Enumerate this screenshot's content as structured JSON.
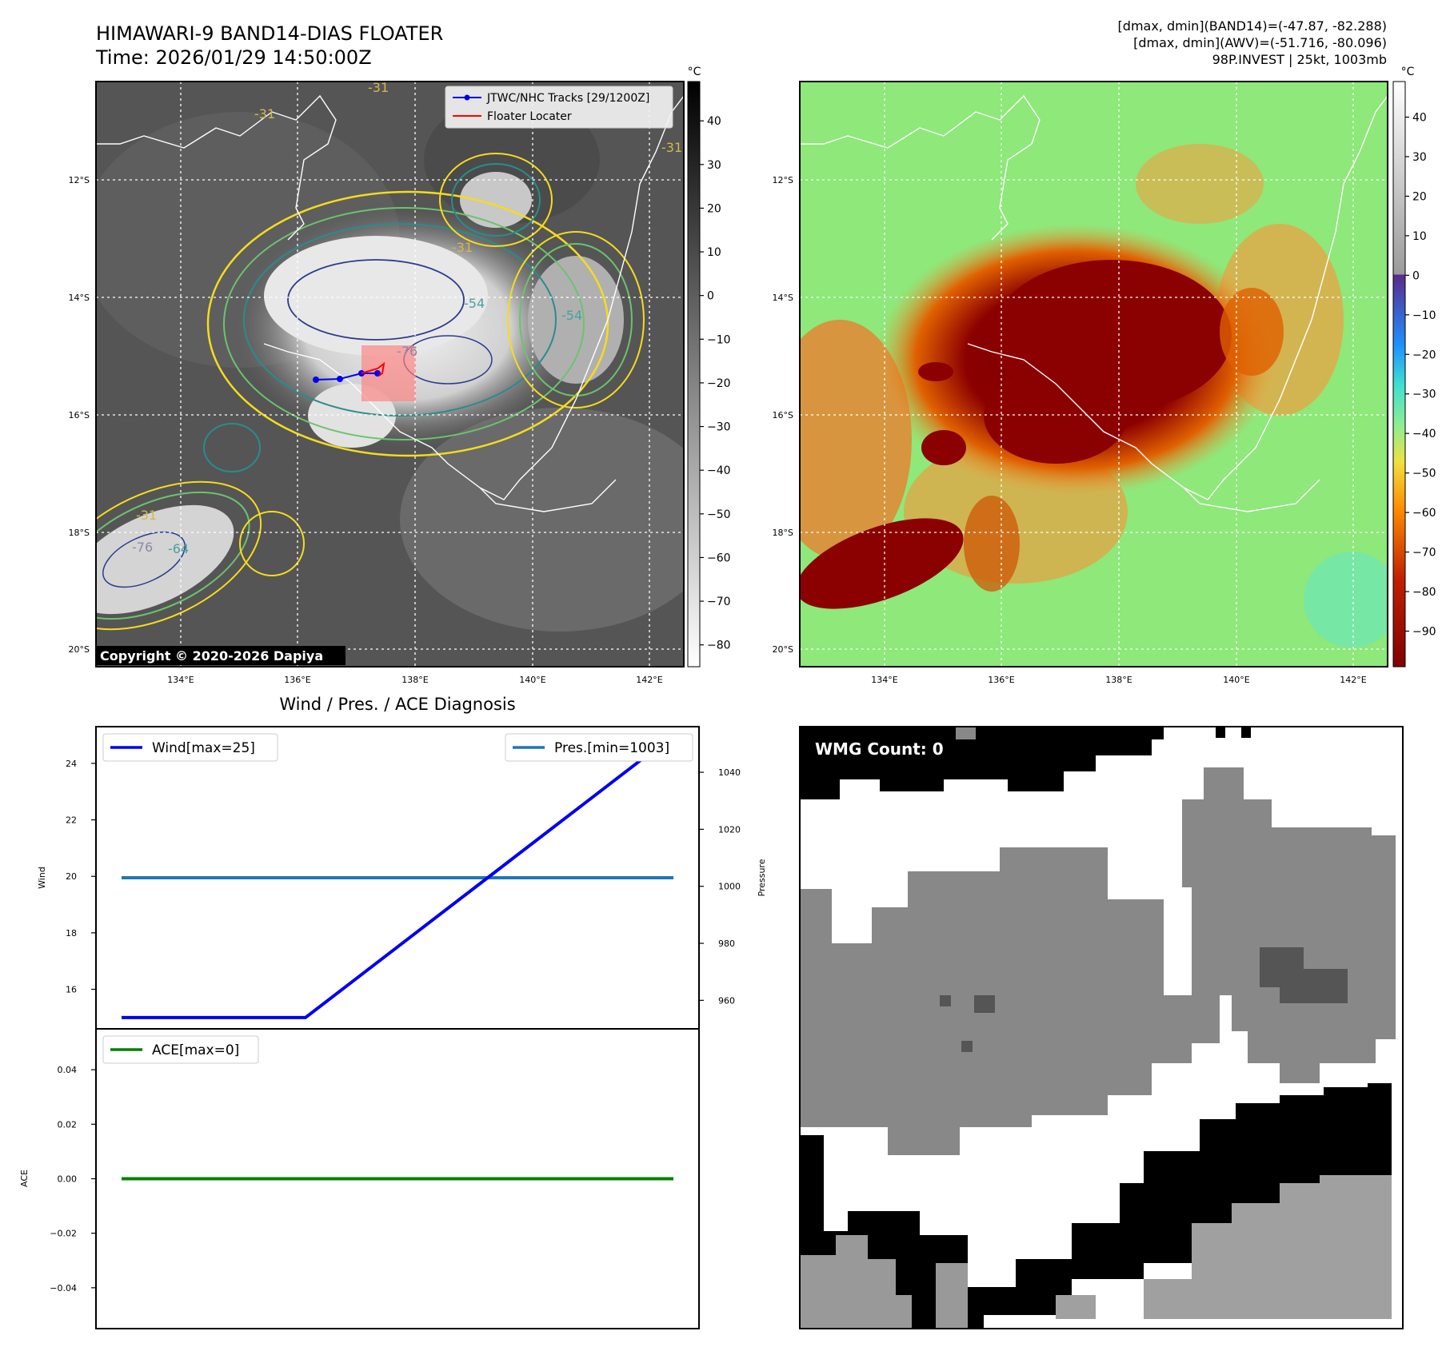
{
  "header": {
    "title_line1": "HIMAWARI-9 BAND14-DIAS FLOATER",
    "title_line2": "Time: 2026/01/29 14:50:00Z",
    "info_line1": "[dmax, dmin](BAND14)=(-47.87, -82.288)",
    "info_line2": "[dmax, dmin](AWV)=(-51.716, -80.096)",
    "info_line3": "98P.INVEST | 25kt, 1003mb"
  },
  "maps": {
    "lat_labels": [
      "12°S",
      "14°S",
      "16°S",
      "18°S",
      "20°S"
    ],
    "lon_labels": [
      "134°E",
      "136°E",
      "138°E",
      "140°E",
      "142°E"
    ],
    "copyright": "Copyright © 2020-2026 Dapiya",
    "legend": {
      "tracks": "JTWC/NHC Tracks [29/1200Z]",
      "locater": "Floater Locater"
    },
    "contour_labels": [
      "-31",
      "-31",
      "-31",
      "-31",
      "-54",
      "-54",
      "-76",
      "-31",
      "-64",
      "-76"
    ],
    "colorbar_unit": "°C",
    "colorbar_left_ticks": [
      "40",
      "30",
      "20",
      "10",
      "0",
      "−10",
      "−20",
      "−30",
      "−40",
      "−50",
      "−60",
      "−70",
      "−80"
    ],
    "colorbar_right_ticks": [
      "40",
      "30",
      "20",
      "10",
      "0",
      "−10",
      "−20",
      "−30",
      "−40",
      "−50",
      "−60",
      "−70",
      "−80",
      "−90"
    ]
  },
  "chart_data": [
    {
      "type": "line",
      "title": "Wind / Pres. / ACE Diagnosis",
      "ylabel": "Wind",
      "ylabel_right": "Pressure",
      "ylim": [
        14.6,
        25.3
      ],
      "ylim_right": [
        950,
        1056
      ],
      "yticks": [
        "24",
        "22",
        "20",
        "18",
        "16"
      ],
      "yticks_right": [
        "1040",
        "1020",
        "1000",
        "980",
        "960"
      ],
      "x": [
        0,
        1,
        2,
        3,
        4,
        5,
        6
      ],
      "series": [
        {
          "name": "Wind[max=25]",
          "values": [
            15,
            15,
            15,
            17.5,
            20,
            22.5,
            25
          ],
          "color": "#0000ee"
        },
        {
          "name": "Pres.[min=1003]",
          "values": [
            1003,
            1003,
            1003,
            1003,
            1003,
            1003,
            1003
          ],
          "color": "#1f77b4"
        }
      ]
    },
    {
      "type": "line",
      "ylabel": "ACE",
      "ylim": [
        -0.055,
        0.055
      ],
      "yticks": [
        "0.04",
        "0.02",
        "0.00",
        "−0.02",
        "−0.04"
      ],
      "x": [
        0,
        1,
        2,
        3,
        4,
        5,
        6
      ],
      "series": [
        {
          "name": "ACE[max=0]",
          "values": [
            0,
            0,
            0,
            0,
            0,
            0,
            0
          ],
          "color": "#008000"
        }
      ]
    }
  ],
  "wmg": {
    "count_label": "WMG Count: 0"
  }
}
